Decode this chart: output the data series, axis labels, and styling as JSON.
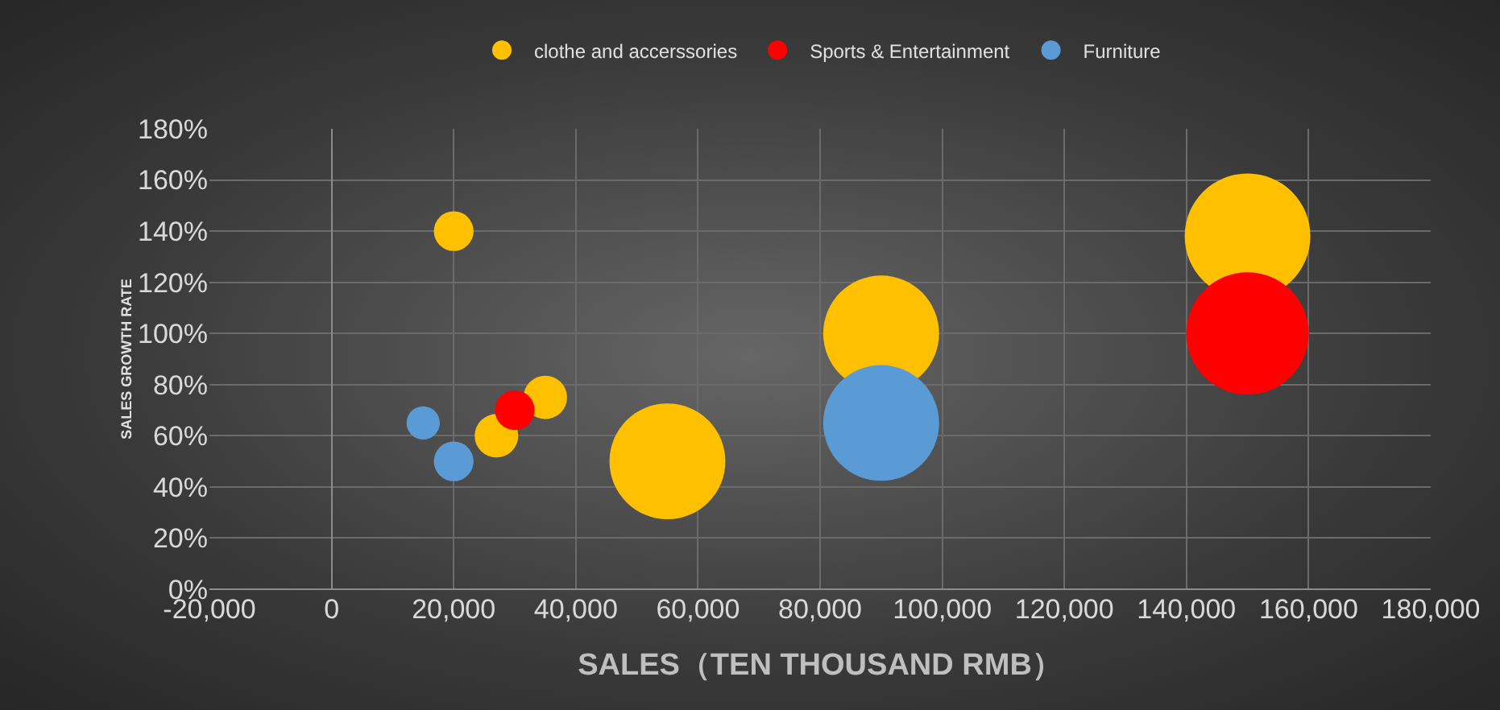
{
  "chart_data": {
    "type": "bubble",
    "xlabel": "SALES（TEN THOUSAND RMB）",
    "ylabel": "SALES GROWTH RATE",
    "series": [
      {
        "name": "clothe and accerssories",
        "color": "#ffc000",
        "x": [
          20000,
          27000,
          35000,
          55000,
          90000,
          150000
        ],
        "values": [
          140,
          60,
          75,
          50,
          100,
          138
        ],
        "sizes": [
          0.1,
          0.12,
          0.12,
          0.85,
          0.85,
          1
        ]
      },
      {
        "name": "Sports & Entertainment",
        "color": "#ff0000",
        "x": [
          30000,
          150000
        ],
        "values": [
          70,
          100
        ],
        "sizes": [
          0.1,
          0.95
        ]
      },
      {
        "name": "Furniture",
        "color": "#5b9bd5",
        "x": [
          15000,
          20000,
          90000
        ],
        "values": [
          65,
          50,
          65
        ],
        "sizes": [
          0.07,
          0.1,
          0.85
        ]
      }
    ],
    "xlim": [
      -20000,
      180000
    ],
    "xticks": [
      {
        "value": -20000,
        "label": "-20,000"
      },
      {
        "value": 0,
        "label": "0"
      },
      {
        "value": 20000,
        "label": "20,000"
      },
      {
        "value": 40000,
        "label": "40,000"
      },
      {
        "value": 60000,
        "label": "60,000"
      },
      {
        "value": 80000,
        "label": "80,000"
      },
      {
        "value": 100000,
        "label": "100,000"
      },
      {
        "value": 120000,
        "label": "120,000"
      },
      {
        "value": 140000,
        "label": "140,000"
      },
      {
        "value": 160000,
        "label": "160,000"
      },
      {
        "value": 180000,
        "label": "180,000"
      }
    ],
    "ylim": [
      0,
      180
    ],
    "yticks": [
      {
        "value": 0,
        "label": "0%"
      },
      {
        "value": 20,
        "label": "20%"
      },
      {
        "value": 40,
        "label": "40%"
      },
      {
        "value": 60,
        "label": "60%"
      },
      {
        "value": 80,
        "label": "80%"
      },
      {
        "value": 100,
        "label": "100%"
      },
      {
        "value": 120,
        "label": "120%"
      },
      {
        "value": 140,
        "label": "140%"
      },
      {
        "value": 160,
        "label": "160%"
      },
      {
        "value": 180,
        "label": "180%"
      }
    ],
    "grid": true,
    "legend": "top"
  }
}
